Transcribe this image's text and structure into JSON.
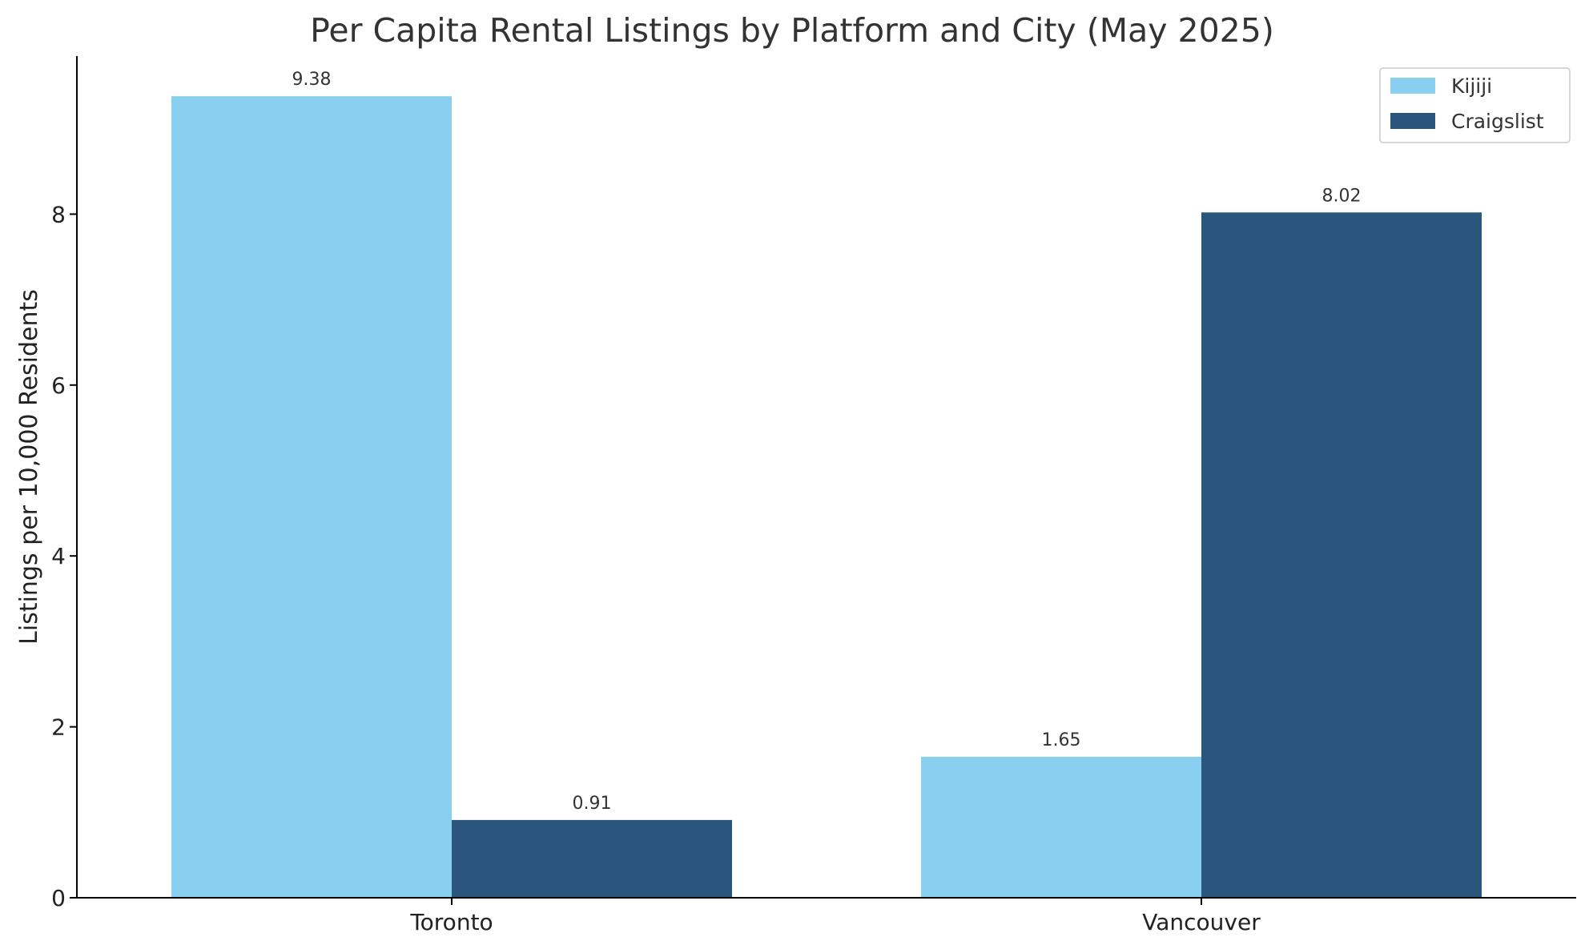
{
  "chart_data": {
    "type": "bar",
    "title": "Per Capita Rental Listings by Platform and City (May 2025)",
    "xlabel": "",
    "ylabel": "Listings per 10,000 Residents",
    "categories": [
      "Toronto",
      "Vancouver"
    ],
    "series": [
      {
        "name": "Kijiji",
        "values": [
          9.38,
          1.65
        ],
        "color": "#89CFF0",
        "labels": [
          "9.38",
          "1.65"
        ]
      },
      {
        "name": "Craigslist",
        "values": [
          0.91,
          8.02
        ],
        "color": "#2A557C",
        "labels": [
          "0.91",
          "8.02"
        ]
      }
    ],
    "ylim": [
      0,
      9.85
    ],
    "yticks": [
      0,
      2,
      4,
      6,
      8
    ],
    "ytick_labels": [
      "0",
      "2",
      "4",
      "6",
      "8"
    ],
    "grid": false,
    "legend": "top-right"
  }
}
